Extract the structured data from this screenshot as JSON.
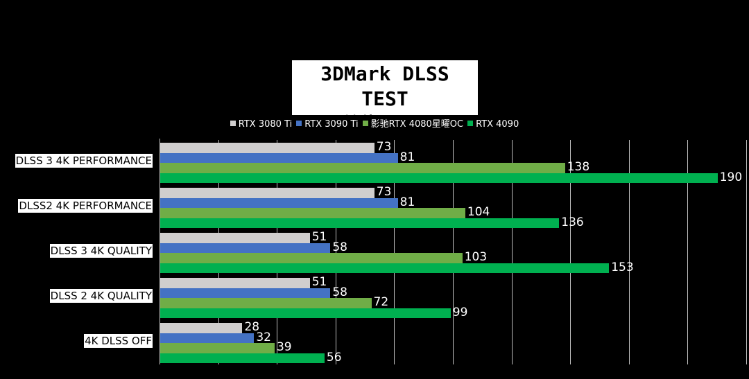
{
  "title": {
    "line1": "3DMark DLSS TEST",
    "line2": "单位：fps"
  },
  "legend": [
    {
      "label": "RTX 3080 Ti",
      "color": "#d0cece"
    },
    {
      "label": "RTX 3090 Ti",
      "color": "#4472c4"
    },
    {
      "label": "影驰RTX 4080星曜OC",
      "color": "#70ad47"
    },
    {
      "label": "RTX 4090",
      "color": "#00b050"
    }
  ],
  "chart_data": {
    "type": "bar",
    "orientation": "horizontal",
    "title": "3DMark DLSS TEST 单位：fps",
    "xlabel": "",
    "ylabel": "",
    "xlim": [
      0,
      200
    ],
    "grid": {
      "vertical": true,
      "step": 20
    },
    "legend_position": "top",
    "categories": [
      "DLSS 3 4K PERFORMANCE",
      "DLSS2 4K PERFORMANCE",
      "DLSS 3 4K QUALITY",
      "DLSS 2 4K QUALITY",
      "4K DLSS OFF"
    ],
    "series": [
      {
        "name": "RTX 3080 Ti",
        "color": "#d0cece",
        "values": [
          73,
          73,
          51,
          51,
          28
        ]
      },
      {
        "name": "RTX 3090 Ti",
        "color": "#4472c4",
        "values": [
          81,
          81,
          58,
          58,
          32
        ]
      },
      {
        "name": "影驰RTX 4080星曜OC",
        "color": "#70ad47",
        "values": [
          138,
          104,
          103,
          72,
          39
        ]
      },
      {
        "name": "RTX 4090",
        "color": "#00b050",
        "values": [
          190,
          136,
          153,
          99,
          56
        ]
      }
    ]
  }
}
